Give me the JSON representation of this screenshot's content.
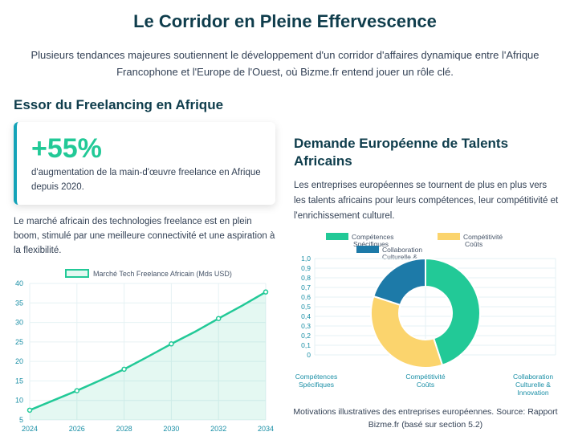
{
  "page": {
    "title": "Le Corridor en Pleine Effervescence",
    "intro": "Plusieurs tendances majeures soutiennent le développement d'un corridor d'affaires dynamique entre l'Afrique Francophone et l'Europe de l'Ouest, où Bizme.fr entend jouer un rôle clé."
  },
  "left": {
    "heading": "Essor du Freelancing en Afrique",
    "stat_value": "+55%",
    "stat_desc": "d'augmentation de la main-d'œuvre freelance en Afrique depuis 2020.",
    "paragraph": "Le marché africain des technologies freelance est en plein boom, stimulé par une meilleure connectivité et une aspiration à la flexibilité."
  },
  "right": {
    "heading": "Demande Européenne de Talents Africains",
    "paragraph": "Les entreprises européennes se tournent de plus en plus vers les talents africains pour leurs compétences, leur compétitivité et l'enrichissement culturel.",
    "caption": "Motivations illustratives des entreprises européennes. Source: Rapport Bizme.fr (basé sur section 5.2)"
  },
  "colors": {
    "teal": "#22c997",
    "yellow": "#fbd46d",
    "blue": "#1d7aa8",
    "heading": "#0f3d4c",
    "tick": "#1a8fa6"
  },
  "chart_data": [
    {
      "type": "area",
      "title": "",
      "legend": "Marché Tech Freelance Africain (Mds USD)",
      "legend_position": "top",
      "x": [
        2024,
        2025,
        2026,
        2027,
        2028,
        2029,
        2030,
        2031,
        2032,
        2033,
        2034
      ],
      "x_tick_labels": [
        "2024",
        "2026",
        "2028",
        "2030",
        "2032",
        "2034"
      ],
      "series": [
        {
          "name": "Marché Tech Freelance Africain (Mds USD)",
          "values": [
            7.5,
            10,
            12.5,
            15.2,
            18,
            21.2,
            24.5,
            27.6,
            31,
            34.3,
            37.8
          ]
        }
      ],
      "ylim": [
        5,
        40
      ],
      "y_tick_labels": [
        "5",
        "10",
        "15",
        "20",
        "25",
        "30",
        "35",
        "40"
      ],
      "grid": true
    },
    {
      "type": "pie",
      "variant": "doughnut",
      "legend_position": "top",
      "legend": [
        "Compétences Spécifiques",
        "Compétitivité Coûts",
        "Collaboration Culturelle & Innovation"
      ],
      "categories": [
        "Compétences Spécifiques",
        "Compétitivité Coûts",
        "Collaboration Culturelle & Innovation"
      ],
      "values": [
        45,
        35,
        20
      ],
      "y_tick_labels": [
        "0",
        "0,1",
        "0,2",
        "0,3",
        "0,4",
        "0,5",
        "0,6",
        "0,7",
        "0,8",
        "0,9",
        "1,0"
      ],
      "grid": true
    }
  ]
}
